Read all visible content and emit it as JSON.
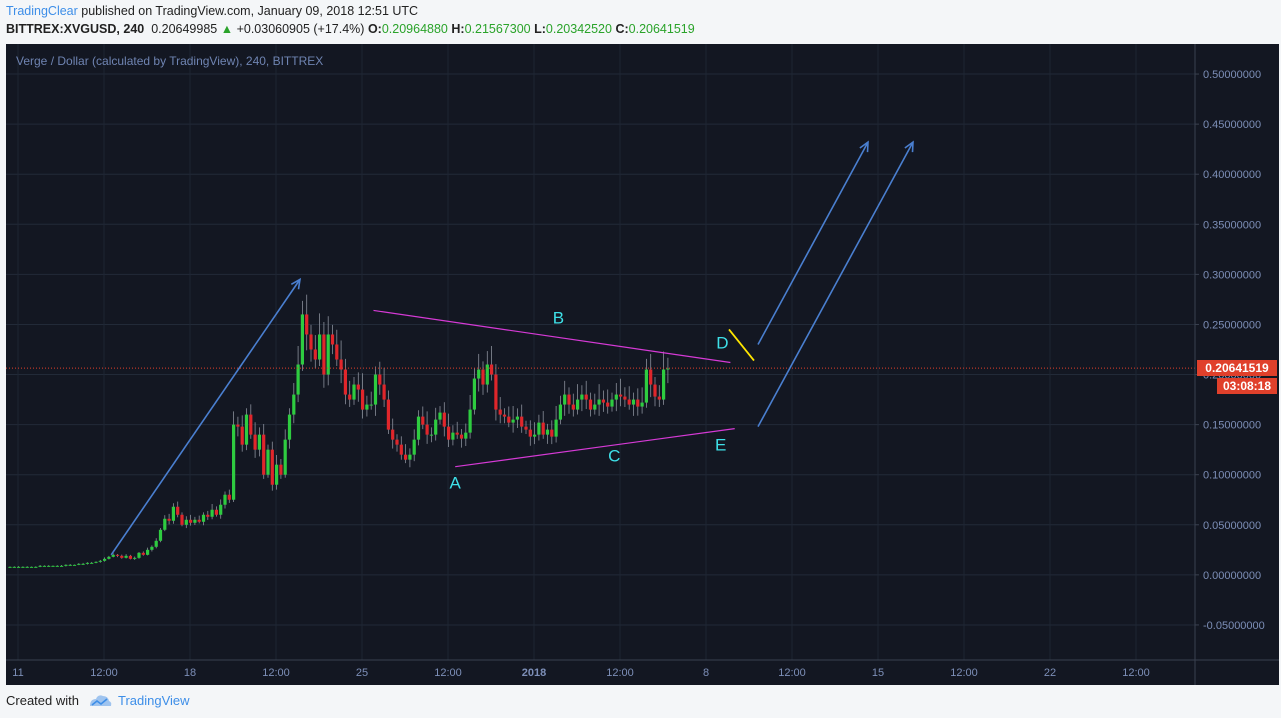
{
  "header": {
    "author": "TradingClear",
    "published_text": " published on TradingView.com, January 09, 2018 12:51 UTC",
    "symbol": "BITTREX:XVGUSD, 240",
    "price": "0.20649985",
    "change": "+0.03060905 (+17.4%)",
    "o_label": "O:",
    "o_value": "0.20964880",
    "h_label": "H:",
    "h_value": "0.21567300",
    "l_label": "L:",
    "l_value": "0.20342520",
    "c_label": "C:",
    "c_value": "0.20641519"
  },
  "footer": {
    "created_with": "Created with",
    "brand": "TradingView"
  },
  "colors": {
    "background": "#131722",
    "up": "#2ecc40",
    "down": "#e0262b",
    "wick": "#8a8f9a",
    "triangle": "#d63ad6",
    "arrow": "#4a7fd0",
    "flag": "#ffe600",
    "label": "#3ee0e8",
    "price_tag": "#e0402b",
    "axis_text": "#7d8fb8",
    "legend_text": "#6f84b2"
  },
  "chart_data": {
    "type": "candlestick",
    "title": "Verge / Dollar (calculated by TradingView), 240, BITTREX",
    "ylim": [
      -0.085,
      0.53
    ],
    "y_ticks": [
      "0.50000000",
      "0.45000000",
      "0.40000000",
      "0.35000000",
      "0.30000000",
      "0.25000000",
      "0.20000000",
      "0.15000000",
      "0.10000000",
      "0.05000000",
      "0.00000000",
      "-0.05000000"
    ],
    "x_ticks": [
      "11",
      "12:00",
      "18",
      "12:00",
      "25",
      "12:00",
      "2018",
      "12:00",
      "8",
      "12:00",
      "15",
      "12:00",
      "22",
      "12:00"
    ],
    "last_price": "0.20641519",
    "countdown": "03:08:18",
    "grid": true,
    "closes": [
      0.008,
      0.008,
      0.008,
      0.008,
      0.008,
      0.008,
      0.008,
      0.009,
      0.009,
      0.009,
      0.009,
      0.009,
      0.009,
      0.01,
      0.01,
      0.01,
      0.011,
      0.011,
      0.012,
      0.012,
      0.013,
      0.014,
      0.016,
      0.018,
      0.02,
      0.019,
      0.017,
      0.019,
      0.016,
      0.017,
      0.022,
      0.02,
      0.025,
      0.028,
      0.034,
      0.045,
      0.056,
      0.054,
      0.068,
      0.06,
      0.05,
      0.055,
      0.052,
      0.055,
      0.053,
      0.06,
      0.058,
      0.065,
      0.06,
      0.07,
      0.08,
      0.075,
      0.15,
      0.148,
      0.13,
      0.16,
      0.14,
      0.125,
      0.14,
      0.1,
      0.125,
      0.09,
      0.11,
      0.1,
      0.135,
      0.16,
      0.18,
      0.21,
      0.26,
      0.24,
      0.225,
      0.215,
      0.24,
      0.2,
      0.24,
      0.23,
      0.215,
      0.205,
      0.18,
      0.175,
      0.19,
      0.185,
      0.165,
      0.17,
      0.17,
      0.2,
      0.19,
      0.175,
      0.145,
      0.135,
      0.13,
      0.12,
      0.115,
      0.12,
      0.135,
      0.158,
      0.15,
      0.14,
      0.14,
      0.155,
      0.162,
      0.148,
      0.135,
      0.142,
      0.14,
      0.136,
      0.142,
      0.165,
      0.196,
      0.205,
      0.19,
      0.21,
      0.2,
      0.165,
      0.16,
      0.158,
      0.152,
      0.155,
      0.158,
      0.148,
      0.145,
      0.138,
      0.14,
      0.152,
      0.14,
      0.145,
      0.138,
      0.155,
      0.17,
      0.18,
      0.17,
      0.165,
      0.175,
      0.18,
      0.175,
      0.165,
      0.17,
      0.175,
      0.172,
      0.168,
      0.175,
      0.18,
      0.178,
      0.175,
      0.17,
      0.175,
      0.168,
      0.172,
      0.205,
      0.19,
      0.178,
      0.175,
      0.205,
      0.206
    ],
    "annotations": {
      "points": [
        {
          "label": "A",
          "t": 104,
          "v": 0.108
        },
        {
          "label": "B",
          "t": 128,
          "v": 0.237
        },
        {
          "label": "C",
          "t": 141,
          "v": 0.135
        },
        {
          "label": "D",
          "t": 168,
          "v": 0.212
        },
        {
          "label": "E",
          "t": 169,
          "v": 0.146
        }
      ],
      "triangle_upper": [
        {
          "t": 85,
          "v": 0.264
        },
        {
          "t": 168,
          "v": 0.212
        }
      ],
      "triangle_lower": [
        {
          "t": 104,
          "v": 0.108
        },
        {
          "t": 169,
          "v": 0.146
        }
      ]
    }
  }
}
